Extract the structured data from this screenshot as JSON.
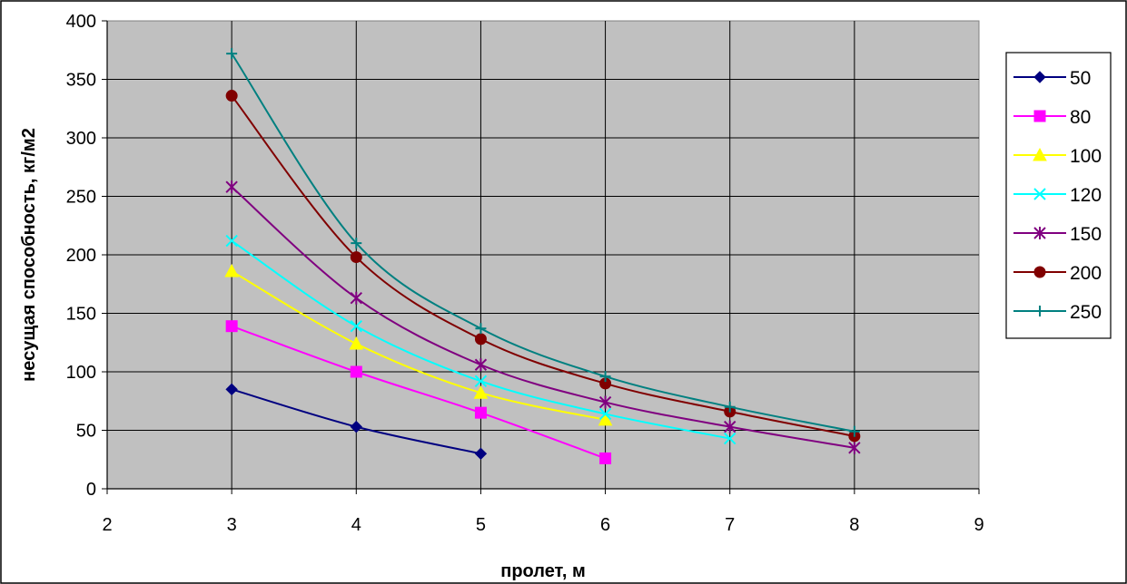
{
  "chart_data": {
    "type": "line",
    "title": "",
    "xlabel": "пролет, м",
    "ylabel": "несущая способность, кг/м2",
    "xlim": [
      2,
      9
    ],
    "ylim": [
      0,
      400
    ],
    "x_ticks": [
      "2",
      "3",
      "4",
      "5",
      "6",
      "7",
      "8",
      "9"
    ],
    "y_ticks": [
      "0",
      "50",
      "100",
      "150",
      "200",
      "250",
      "300",
      "350",
      "400"
    ],
    "grid": true,
    "legend_position": "right",
    "plot_background": "#c0c0c0",
    "series": [
      {
        "name": "50",
        "color": "#000080",
        "marker": "diamond",
        "x": [
          3,
          4,
          5
        ],
        "y": [
          85,
          53,
          30
        ]
      },
      {
        "name": "80",
        "color": "#ff00ff",
        "marker": "square",
        "x": [
          3,
          4,
          5,
          6
        ],
        "y": [
          139,
          100,
          65,
          26
        ]
      },
      {
        "name": "100",
        "color": "#ffff00",
        "marker": "triangle",
        "x": [
          3,
          4,
          5,
          6
        ],
        "y": [
          186,
          124,
          82,
          59
        ]
      },
      {
        "name": "120",
        "color": "#00ffff",
        "marker": "x",
        "x": [
          3,
          4,
          5,
          6,
          7
        ],
        "y": [
          212,
          139,
          92,
          64,
          43
        ]
      },
      {
        "name": "150",
        "color": "#800080",
        "marker": "star",
        "x": [
          3,
          4,
          5,
          6,
          7,
          8
        ],
        "y": [
          258,
          163,
          106,
          74,
          53,
          35
        ]
      },
      {
        "name": "200",
        "color": "#800000",
        "marker": "circle",
        "x": [
          3,
          4,
          5,
          6,
          7,
          8
        ],
        "y": [
          336,
          198,
          128,
          90,
          66,
          45
        ]
      },
      {
        "name": "250",
        "color": "#008080",
        "marker": "plus",
        "x": [
          3,
          4,
          5,
          6,
          7,
          8
        ],
        "y": [
          372,
          210,
          137,
          96,
          70,
          49
        ]
      }
    ]
  }
}
